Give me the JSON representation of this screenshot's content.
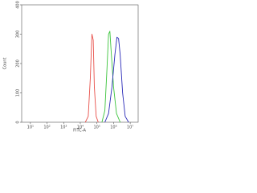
{
  "chart_data": {
    "type": "line",
    "x_label": "FITC-A",
    "y_label": "Count",
    "log_x": true,
    "xlim": [
      3,
      30000000
    ],
    "ylim": [
      0,
      400
    ],
    "xticks": [
      {
        "value": 10,
        "label": "10¹"
      },
      {
        "value": 100,
        "label": "10²"
      },
      {
        "value": 1000,
        "label": "10³"
      },
      {
        "value": 10000,
        "label": "10⁴"
      },
      {
        "value": 100000,
        "label": "10⁵"
      },
      {
        "value": 1000000,
        "label": "10⁶"
      },
      {
        "value": 10000000,
        "label": "10⁷"
      }
    ],
    "yticks": [
      0,
      100,
      200,
      300,
      400
    ],
    "series": [
      {
        "color": "#e8504a",
        "x": [
          20000,
          30000,
          40000,
          50000,
          60000,
          70000,
          90000,
          120000
        ],
        "values": [
          0,
          20,
          150,
          300,
          280,
          120,
          20,
          0
        ]
      },
      {
        "color": "#3cc43c",
        "x": [
          200000,
          300000,
          400000,
          500000,
          600000,
          700000,
          1000000,
          1500000,
          2500000
        ],
        "values": [
          0,
          40,
          180,
          300,
          310,
          250,
          120,
          30,
          0
        ]
      },
      {
        "color": "#2a2ab8",
        "x": [
          300000,
          500000,
          800000,
          1200000,
          1600000,
          2000000,
          2500000,
          3500000,
          5000000,
          8000000
        ],
        "values": [
          0,
          30,
          120,
          230,
          290,
          285,
          230,
          100,
          20,
          0
        ]
      }
    ]
  }
}
